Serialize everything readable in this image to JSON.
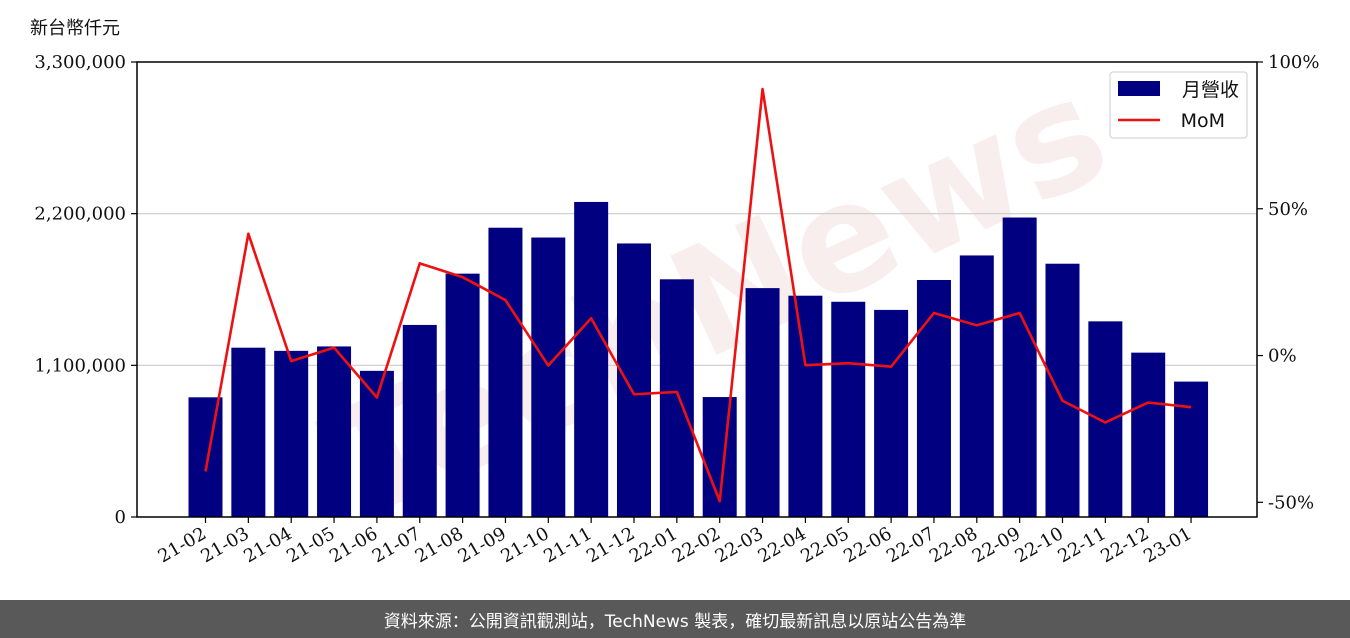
{
  "y_unit_label": "新台幣仟元",
  "footer_text": "資料來源：公開資訊觀測站，TechNews 製表，確切最新訊息以原站公告為準",
  "watermark_text": "TechNews",
  "colors": {
    "bar": "#000080",
    "line": "#ee1111",
    "grid": "#cccccc",
    "footer_bg": "#595959"
  },
  "chart_data": {
    "type": "bar",
    "categories": [
      "21-02",
      "21-03",
      "21-04",
      "21-05",
      "21-06",
      "21-07",
      "21-08",
      "21-09",
      "21-10",
      "21-11",
      "21-12",
      "22-01",
      "22-02",
      "22-03",
      "22-04",
      "22-05",
      "22-06",
      "22-07",
      "22-08",
      "22-09",
      "22-10",
      "22-11",
      "22-12",
      "23-01"
    ],
    "series": [
      {
        "name": "月營收",
        "axis": "left",
        "type": "bar",
        "values": [
          868000,
          1228000,
          1205000,
          1237000,
          1060000,
          1393000,
          1765000,
          2098000,
          2027000,
          2285000,
          1984000,
          1724000,
          870000,
          1660000,
          1605000,
          1561000,
          1502000,
          1719000,
          1897000,
          2172000,
          1837000,
          1419000,
          1192000,
          982000
        ]
      },
      {
        "name": "MoM",
        "axis": "right",
        "type": "line",
        "unit": "%",
        "values": [
          -39.5,
          41.5,
          -1.9,
          2.7,
          -14.3,
          31.4,
          26.7,
          18.9,
          -3.4,
          12.7,
          -13.2,
          -12.4,
          -49.6,
          90.8,
          -3.3,
          -2.6,
          -3.8,
          14.5,
          10.3,
          14.5,
          -15.4,
          -22.8,
          -16.0,
          -17.6
        ]
      }
    ],
    "left_axis": {
      "ylim": [
        0,
        3300000
      ],
      "ticks": [
        0,
        1100000,
        2200000,
        3300000
      ],
      "tick_labels": [
        "0",
        "1,100,000",
        "2,200,000",
        "3,300,000"
      ]
    },
    "right_axis": {
      "ylim": [
        -55,
        100
      ],
      "ticks": [
        -50,
        0,
        50,
        100
      ],
      "tick_labels": [
        "-50%",
        "0%",
        "50%",
        "100%"
      ]
    },
    "grid": "horizontal",
    "legend_position": "top-right"
  }
}
